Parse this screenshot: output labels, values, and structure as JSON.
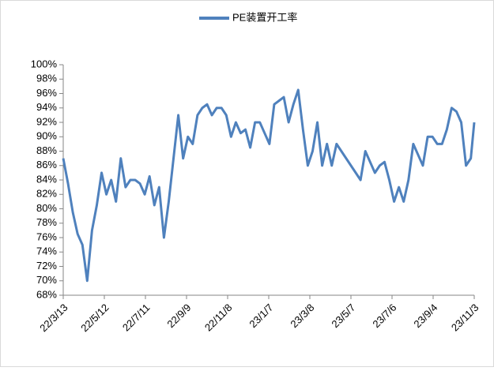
{
  "chart_data": {
    "type": "line",
    "x": [
      "22/3/13",
      "22/3/20",
      "22/3/27",
      "22/4/3",
      "22/4/10",
      "22/4/17",
      "22/4/24",
      "22/5/1",
      "22/5/8",
      "22/5/15",
      "22/5/22",
      "22/5/29",
      "22/6/5",
      "22/6/12",
      "22/6/19",
      "22/6/26",
      "22/7/3",
      "22/7/10",
      "22/7/17",
      "22/7/24",
      "22/7/31",
      "22/8/7",
      "22/8/14",
      "22/8/21",
      "22/8/28",
      "22/9/4",
      "22/9/11",
      "22/9/18",
      "22/9/25",
      "22/10/2",
      "22/10/9",
      "22/10/16",
      "22/10/23",
      "22/10/30",
      "22/11/6",
      "22/11/13",
      "22/11/20",
      "22/11/27",
      "22/12/4",
      "22/12/11",
      "22/12/18",
      "22/12/25",
      "23/1/1",
      "23/1/8",
      "23/1/15",
      "23/1/22",
      "23/1/29",
      "23/2/5",
      "23/2/12",
      "23/2/19",
      "23/2/26",
      "23/3/5",
      "23/3/12",
      "23/3/19",
      "23/3/26",
      "23/4/2",
      "23/4/9",
      "23/4/16",
      "23/4/23",
      "23/4/30",
      "23/5/7",
      "23/5/14",
      "23/5/21",
      "23/5/28",
      "23/6/4",
      "23/6/11",
      "23/6/18",
      "23/6/25",
      "23/7/2",
      "23/7/9",
      "23/7/16",
      "23/7/23",
      "23/7/30",
      "23/8/6",
      "23/8/13",
      "23/8/20",
      "23/8/27",
      "23/9/3",
      "23/9/10",
      "23/9/17",
      "23/9/24",
      "23/10/1",
      "23/10/8",
      "23/10/15",
      "23/10/22",
      "23/10/29",
      "23/11/3"
    ],
    "series": [
      {
        "name": "PE装置开工率",
        "color": "#4f81bd",
        "values": [
          87,
          83.5,
          79.5,
          76.5,
          75,
          70,
          77,
          80.5,
          85,
          82,
          84,
          81,
          87,
          83,
          84,
          84,
          83.5,
          82,
          84.5,
          80.5,
          83,
          76,
          81,
          87,
          93,
          87,
          90,
          89,
          93,
          94,
          94.5,
          93,
          94,
          94,
          93,
          90,
          92,
          90.5,
          91,
          88.5,
          92,
          92,
          90.5,
          89,
          94.5,
          95,
          95.5,
          92,
          94.5,
          96.5,
          91,
          86,
          88,
          92,
          86,
          89,
          86,
          89,
          88,
          87,
          86,
          85,
          84,
          88,
          86.5,
          85,
          86,
          86.5,
          84,
          81,
          83,
          81,
          84,
          89,
          87.5,
          86,
          90,
          90,
          89,
          89,
          91,
          94,
          93.5,
          92,
          86,
          87,
          92
        ]
      }
    ],
    "xlim": [
      "22/3/13",
      "23/11/3"
    ],
    "xticks": [
      "22/3/13",
      "22/5/12",
      "22/7/11",
      "22/9/9",
      "22/11/8",
      "23/1/7",
      "23/3/8",
      "23/5/7",
      "23/7/6",
      "23/9/4",
      "23/11/3"
    ],
    "ylim": [
      68,
      100
    ],
    "yticks": [
      {
        "value": 68,
        "label": "68%"
      },
      {
        "value": 70,
        "label": "70%"
      },
      {
        "value": 72,
        "label": "72%"
      },
      {
        "value": 74,
        "label": "74%"
      },
      {
        "value": 76,
        "label": "76%"
      },
      {
        "value": 78,
        "label": "78%"
      },
      {
        "value": 80,
        "label": "80%"
      },
      {
        "value": 82,
        "label": "82%"
      },
      {
        "value": 84,
        "label": "84%"
      },
      {
        "value": 86,
        "label": "86%"
      },
      {
        "value": 88,
        "label": "88%"
      },
      {
        "value": 90,
        "label": "90%"
      },
      {
        "value": 92,
        "label": "92%"
      },
      {
        "value": 94,
        "label": "94%"
      },
      {
        "value": 96,
        "label": "96%"
      },
      {
        "value": 98,
        "label": "98%"
      },
      {
        "value": 100,
        "label": "100%"
      }
    ],
    "legend": "top"
  }
}
